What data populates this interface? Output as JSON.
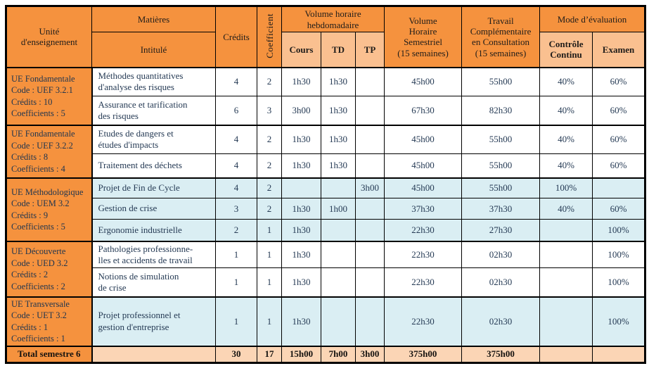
{
  "colors": {
    "header_orange": "#f5923e",
    "subheader_orange": "#fac090",
    "row_blue": "#daeef3",
    "total_peach": "#fbd5b5",
    "border_black": "#000000",
    "text_navy": "#253a54"
  },
  "table": {
    "header": {
      "unite": "Unité\nd'enseignement",
      "matieres": "Matières",
      "intitule": "Intitulé",
      "credits": "Crédits",
      "coefficient": "Coefficient",
      "volume_hebdo": "Volume horaire\nhebdomadaire",
      "cours": "Cours",
      "td": "TD",
      "tp": "TP",
      "volume_semestriel": "Volume\nHoraire\nSemestriel\n(15 semaines)",
      "travail_complementaire": "Travail\nComplémentaire\nen Consultation\n(15 semaines)",
      "mode_evaluation": "Mode d’évaluation",
      "controle_continu": "Contrôle\nContinu",
      "examen": "Examen"
    },
    "sections": [
      {
        "ue": "UE Fondamentale\nCode : UEF 3.2.1\nCrédits : 10\nCoefficients : 5",
        "tint": "white",
        "rows": [
          {
            "intitule": "Méthodes quantitatives\nd'analyse des risques",
            "credits": "4",
            "coeff": "2",
            "cours": "1h30",
            "td": "1h30",
            "tp": "",
            "vhs": "45h00",
            "tc": "55h00",
            "cc": "40%",
            "examen": "60%"
          },
          {
            "intitule": "Assurance et tarification\ndes risques",
            "credits": "6",
            "coeff": "3",
            "cours": "3h00",
            "td": "1h30",
            "tp": "",
            "vhs": "67h30",
            "tc": "82h30",
            "cc": "40%",
            "examen": "60%"
          }
        ]
      },
      {
        "ue": "UE Fondamentale\nCode : UEF 3.2.2\nCrédits : 8\nCoefficients : 4",
        "tint": "white",
        "rows": [
          {
            "intitule": "Etudes de dangers et\nétudes d'impacts",
            "credits": "4",
            "coeff": "2",
            "cours": "1h30",
            "td": "1h30",
            "tp": "",
            "vhs": "45h00",
            "tc": "55h00",
            "cc": "40%",
            "examen": "60%"
          },
          {
            "intitule": "Traitement des déchets",
            "credits": "4",
            "coeff": "2",
            "cours": "1h30",
            "td": "1h30",
            "tp": "",
            "vhs": "45h00",
            "tc": "55h00",
            "cc": "40%",
            "examen": "60%"
          }
        ]
      },
      {
        "ue": "UE Méthodologique\nCode : UEM 3.2\nCrédits : 9\nCoefficients : 5",
        "tint": "blue",
        "rows": [
          {
            "intitule": "Projet de Fin de Cycle",
            "credits": "4",
            "coeff": "2",
            "cours": "",
            "td": "",
            "tp": "3h00",
            "vhs": "45h00",
            "tc": "55h00",
            "cc": "100%",
            "examen": ""
          },
          {
            "intitule": "Gestion de crise",
            "credits": "3",
            "coeff": "2",
            "cours": "1h30",
            "td": "1h00",
            "tp": "",
            "vhs": "37h30",
            "tc": "37h30",
            "cc": "40%",
            "examen": "60%"
          },
          {
            "intitule": "Ergonomie industrielle",
            "credits": "2",
            "coeff": "1",
            "cours": "1h30",
            "td": "",
            "tp": "",
            "vhs": "22h30",
            "tc": "27h30",
            "cc": "",
            "examen": "100%"
          }
        ]
      },
      {
        "ue": "UE Découverte\nCode : UED 3.2\nCrédits : 2\nCoefficients : 2",
        "tint": "white",
        "rows": [
          {
            "intitule": "Pathologies professionne-\nlles et accidents de travail",
            "credits": "1",
            "coeff": "1",
            "cours": "1h30",
            "td": "",
            "tp": "",
            "vhs": "22h30",
            "tc": "02h30",
            "cc": "",
            "examen": "100%"
          },
          {
            "intitule": "Notions de simulation\nde crise",
            "credits": "1",
            "coeff": "1",
            "cours": "1h30",
            "td": "",
            "tp": "",
            "vhs": "22h30",
            "tc": "02h30",
            "cc": "",
            "examen": "100%"
          }
        ]
      },
      {
        "ue": "UE Transversale\nCode : UET 3.2\nCrédits : 1\nCoefficients : 1",
        "tint": "blue",
        "rows": [
          {
            "intitule": "Projet professionnel et\ngestion d'entreprise",
            "credits": "1",
            "coeff": "1",
            "cours": "1h30",
            "td": "",
            "tp": "",
            "vhs": "22h30",
            "tc": "02h30",
            "cc": "",
            "examen": "100%"
          }
        ]
      }
    ],
    "total": {
      "label": "Total semestre 6",
      "intitule": "",
      "credits": "30",
      "coeff": "17",
      "cours": "15h00",
      "td": "7h00",
      "tp": "3h00",
      "vhs": "375h00",
      "tc": "375h00",
      "cc": "",
      "examen": ""
    }
  }
}
